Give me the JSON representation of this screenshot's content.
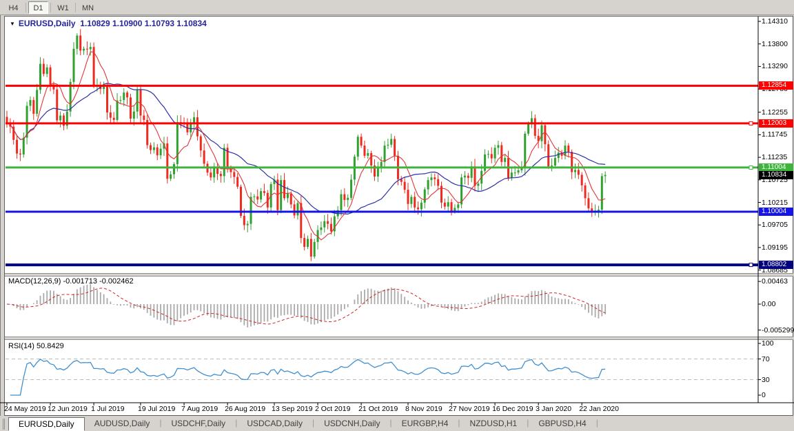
{
  "toolbar": {
    "buttons": [
      {
        "label": "H4",
        "active": false
      },
      {
        "label": "D1",
        "active": true
      },
      {
        "label": "W1",
        "active": false
      },
      {
        "label": "MN",
        "active": false
      }
    ]
  },
  "chart": {
    "symbol": "EURUSD,Daily",
    "ohlc_line": "1.10829 1.10900 1.10793 1.10834",
    "macd_label": "MACD(12,26,9)",
    "macd_values": "-0.001713 -0.002462",
    "rsi_label": "RSI(14)",
    "rsi_value": "50.8429"
  },
  "chart_data": {
    "type": "candlestick",
    "symbol": "EURUSD",
    "timeframe": "Daily",
    "quote": {
      "open": 1.10829,
      "high": 1.109,
      "low": 1.10793,
      "close": 1.10834
    },
    "closes": [
      1.1202,
      1.1193,
      1.1163,
      1.1132,
      1.113,
      1.1168,
      1.124,
      1.1253,
      1.1222,
      1.1276,
      1.1335,
      1.1312,
      1.1327,
      1.1288,
      1.1277,
      1.1207,
      1.1218,
      1.1195,
      1.1227,
      1.1294,
      1.1369,
      1.1399,
      1.1365,
      1.1369,
      1.1368,
      1.1373,
      1.1285,
      1.1286,
      1.1278,
      1.1283,
      1.1225,
      1.1213,
      1.1208,
      1.1252,
      1.1253,
      1.127,
      1.1259,
      1.1211,
      1.1227,
      1.1277,
      1.1218,
      1.1208,
      1.1151,
      1.114,
      1.1146,
      1.1128,
      1.1143,
      1.1155,
      1.1075,
      1.1085,
      1.1108,
      1.1203,
      1.12,
      1.1199,
      1.118,
      1.1199,
      1.1214,
      1.1171,
      1.1139,
      1.1109,
      1.1089,
      1.1078,
      1.1099,
      1.1086,
      1.1081,
      1.1145,
      1.1101,
      1.109,
      1.1079,
      1.1057,
      1.0991,
      1.097,
      1.0973,
      1.1034,
      1.1035,
      1.1028,
      1.1047,
      1.1043,
      1.101,
      1.1063,
      1.1073,
      1.1004,
      1.1072,
      1.1031,
      1.1041,
      1.1017,
      1.0992,
      1.102,
      1.0941,
      1.0921,
      1.0939,
      1.0899,
      1.0932,
      1.0959,
      1.0965,
      1.0979,
      1.0973,
      1.0956,
      1.099,
      1.1004,
      1.104,
      1.1027,
      1.1032,
      1.1073,
      1.1125,
      1.117,
      1.115,
      1.1127,
      1.1133,
      1.1105,
      1.108,
      1.1099,
      1.1113,
      1.115,
      1.1152,
      1.1165,
      1.1127,
      1.1074,
      1.1068,
      1.105,
      1.1018,
      1.1034,
      1.101,
      1.1006,
      1.1021,
      1.1051,
      1.1072,
      1.1078,
      1.1074,
      1.1059,
      1.1021,
      1.1012,
      1.1022,
      1.1001,
      1.1009,
      1.1017,
      1.1078,
      1.1082,
      1.1077,
      1.1103,
      1.1059,
      1.1064,
      1.1093,
      1.113,
      1.1131,
      1.1121,
      1.1145,
      1.1151,
      1.1113,
      1.1122,
      1.1077,
      1.1089,
      1.1089,
      1.1094,
      1.1099,
      1.1177,
      1.1199,
      1.1212,
      1.1172,
      1.116,
      1.1196,
      1.1153,
      1.1103,
      1.1105,
      1.1122,
      1.1134,
      1.1127,
      1.115,
      1.1136,
      1.109,
      1.1095,
      1.1084,
      1.106,
      1.1031,
      1.1008,
      1.0999,
      1.1003,
      1.1005,
      1.1081,
      1.10834
    ],
    "x_ticks": [
      {
        "label": "24 May 2019",
        "i": 0
      },
      {
        "label": "12 Jun 2019",
        "i": 13
      },
      {
        "label": "1 Jul 2019",
        "i": 26
      },
      {
        "label": "19 Jul 2019",
        "i": 40
      },
      {
        "label": "7 Aug 2019",
        "i": 53
      },
      {
        "label": "26 Aug 2019",
        "i": 66
      },
      {
        "label": "13 Sep 2019",
        "i": 80
      },
      {
        "label": "2 Oct 2019",
        "i": 93
      },
      {
        "label": "21 Oct 2019",
        "i": 106
      },
      {
        "label": "8 Nov 2019",
        "i": 120
      },
      {
        "label": "27 Nov 2019",
        "i": 133
      },
      {
        "label": "16 Dec 2019",
        "i": 146
      },
      {
        "label": "3 Jan 2020",
        "i": 159
      },
      {
        "label": "22 Jan 2020",
        "i": 172
      }
    ],
    "y_ticks": [
      "1.14310",
      "1.13800",
      "1.13290",
      "1.12780",
      "1.12255",
      "1.11745",
      "1.11235",
      "1.10725",
      "1.10215",
      "1.09705",
      "1.09195",
      "1.08685"
    ],
    "levels": [
      {
        "price": 1.12854,
        "label": "1.12854",
        "color": "#FE0000",
        "width": 3,
        "marker": false
      },
      {
        "price": 1.12003,
        "label": "1.12003",
        "color": "#FE0000",
        "width": 3,
        "marker": true
      },
      {
        "price": 1.11004,
        "label": "1.11004",
        "color": "#3DB53D",
        "width": 3,
        "marker": true
      },
      {
        "price": 1.10004,
        "label": "1.10004",
        "color": "#1414E8",
        "width": 3,
        "marker": false
      },
      {
        "price": 1.08802,
        "label": "1.08802",
        "color": "#00007D",
        "width": 4,
        "marker": true
      }
    ],
    "current_price": {
      "price": 1.10834,
      "label": "1.10834",
      "color": "#000000"
    },
    "ma_fast_period": 7,
    "ma_slow_period": 25,
    "macd": {
      "fast": 12,
      "slow": 26,
      "signal": 9,
      "value": -0.001713,
      "signal_value": -0.002462,
      "scale_ticks": [
        "0.00463",
        "0.00",
        "-0.005299"
      ]
    },
    "rsi": {
      "period": 14,
      "value": 50.8429,
      "scale_ticks": [
        "100",
        "70",
        "30",
        "0"
      ],
      "levels": [
        70,
        30
      ]
    }
  },
  "colors": {
    "candle_up": "#2FA12F",
    "candle_down": "#EF2A1E",
    "ma_fast": "#E23535",
    "ma_slow": "#2E31A8",
    "macd_bar": "#AAAAAA",
    "macd_signal": "#D22222",
    "rsi_line": "#3F8FD0",
    "rsi_level": "#BBBBBB",
    "badge_green": "#3DB53D",
    "badge_red": "#FE0000",
    "badge_blue": "#1414E8",
    "badge_navy": "#00007D",
    "badge_black": "#000000"
  },
  "tabs": [
    {
      "label": "EURUSD,Daily",
      "active": true
    },
    {
      "label": "AUDUSD,Daily",
      "active": false
    },
    {
      "label": "USDCHF,Daily",
      "active": false
    },
    {
      "label": "USDCAD,Daily",
      "active": false
    },
    {
      "label": "USDCNH,Daily",
      "active": false
    },
    {
      "label": "EURGBP,H4",
      "active": false
    },
    {
      "label": "NZDUSD,H1",
      "active": false
    },
    {
      "label": "GBPUSD,H4",
      "active": false
    }
  ]
}
